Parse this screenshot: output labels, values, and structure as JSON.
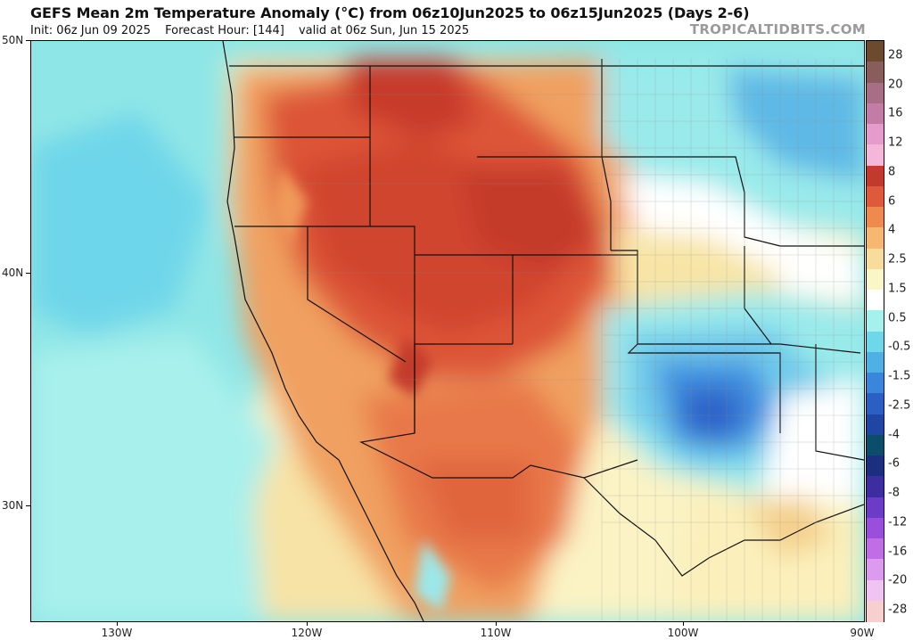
{
  "header": {
    "title": "GEFS Mean 2m Temperature Anomaly (°C) from 06z10Jun2025 to 06z15Jun2025 (Days 2-6)",
    "init": "Init: 06z Jun 09 2025",
    "forecast_hour": "Forecast Hour: [144]",
    "valid": "valid at 06z Sun, Jun 15 2025",
    "source": "TROPICALTIDBITS.COM"
  },
  "map": {
    "lat_labels": [
      "50N",
      "40N",
      "30N"
    ],
    "lon_labels": [
      "130W",
      "120W",
      "110W",
      "100W",
      "90W"
    ]
  },
  "colorbar": {
    "levels": [
      "28",
      "20",
      "16",
      "12",
      "8",
      "6",
      "4",
      "2.5",
      "1.5",
      "0.5",
      "-0.5",
      "-1.5",
      "-2.5",
      "-4",
      "-6",
      "-8",
      "-12",
      "-16",
      "-20",
      "-28"
    ],
    "colors": [
      "#6b4a2e",
      "#8a5d5d",
      "#a86e86",
      "#c27ca5",
      "#e59bcc",
      "#f4b6d9",
      "#c23a2d",
      "#df5a3a",
      "#ef8a4e",
      "#f6b870",
      "#f8dc9c",
      "#fbf6c8",
      "#ffffff",
      "#a6f1ee",
      "#6fd7ea",
      "#4fb0e6",
      "#3a86dc",
      "#2b5fc4",
      "#1f46a5",
      "#0d4d6c",
      "#1b2e80",
      "#3d2da0",
      "#6c3bc8",
      "#9a4fdc",
      "#c06ee6",
      "#dc9bef",
      "#f0c4f2",
      "#f7cfcf"
    ]
  }
}
